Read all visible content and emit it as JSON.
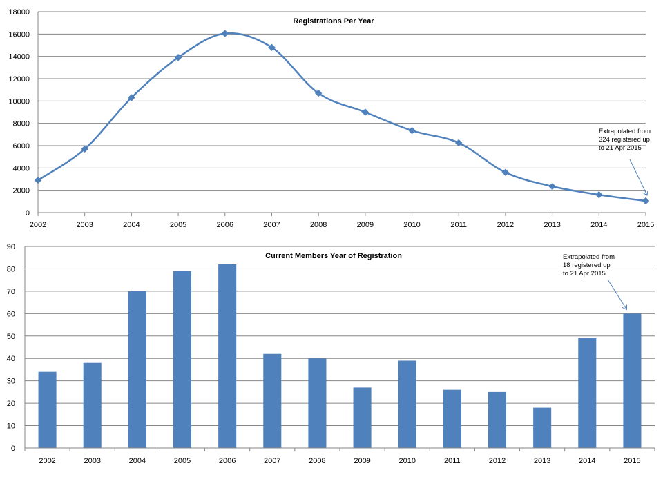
{
  "chart_data": [
    {
      "type": "line",
      "title": "Registrations  Per Year",
      "xlabel": "",
      "ylabel": "",
      "categories": [
        "2002",
        "2003",
        "2004",
        "2005",
        "2006",
        "2007",
        "2008",
        "2009",
        "2010",
        "2011",
        "2012",
        "2013",
        "2014",
        "2015"
      ],
      "values": [
        2900,
        5700,
        10300,
        13900,
        16050,
        14800,
        10700,
        9000,
        7350,
        6250,
        3600,
        2350,
        1600,
        1050
      ],
      "ylim": [
        0,
        18000
      ],
      "yticks": [
        "0",
        "2000",
        "4000",
        "6000",
        "8000",
        "10000",
        "12000",
        "14000",
        "16000",
        "18000"
      ],
      "ytick_step": 2000,
      "grid": true,
      "legend": "none",
      "color": "#4F81BD",
      "annotation": {
        "lines": [
          "Extrapolated from",
          "324 registered up",
          "to 21 Apr 2015"
        ],
        "target_category": "2015"
      }
    },
    {
      "type": "bar",
      "title": "Current Members Year of Registration",
      "xlabel": "",
      "ylabel": "",
      "categories": [
        "2002",
        "2003",
        "2004",
        "2005",
        "2006",
        "2007",
        "2008",
        "2009",
        "2010",
        "2011",
        "2012",
        "2013",
        "2014",
        "2015"
      ],
      "values": [
        34,
        38,
        70,
        79,
        82,
        42,
        40,
        27,
        39,
        26,
        25,
        18,
        49,
        60
      ],
      "ylim": [
        0,
        90
      ],
      "yticks": [
        "0",
        "10",
        "20",
        "30",
        "40",
        "50",
        "60",
        "70",
        "80",
        "90"
      ],
      "ytick_step": 10,
      "grid": true,
      "legend": "none",
      "color": "#4F81BD",
      "annotation": {
        "lines": [
          "Extrapolated from",
          "18 registered up",
          "to 21 Apr 2015"
        ],
        "target_category": "2015"
      }
    }
  ]
}
